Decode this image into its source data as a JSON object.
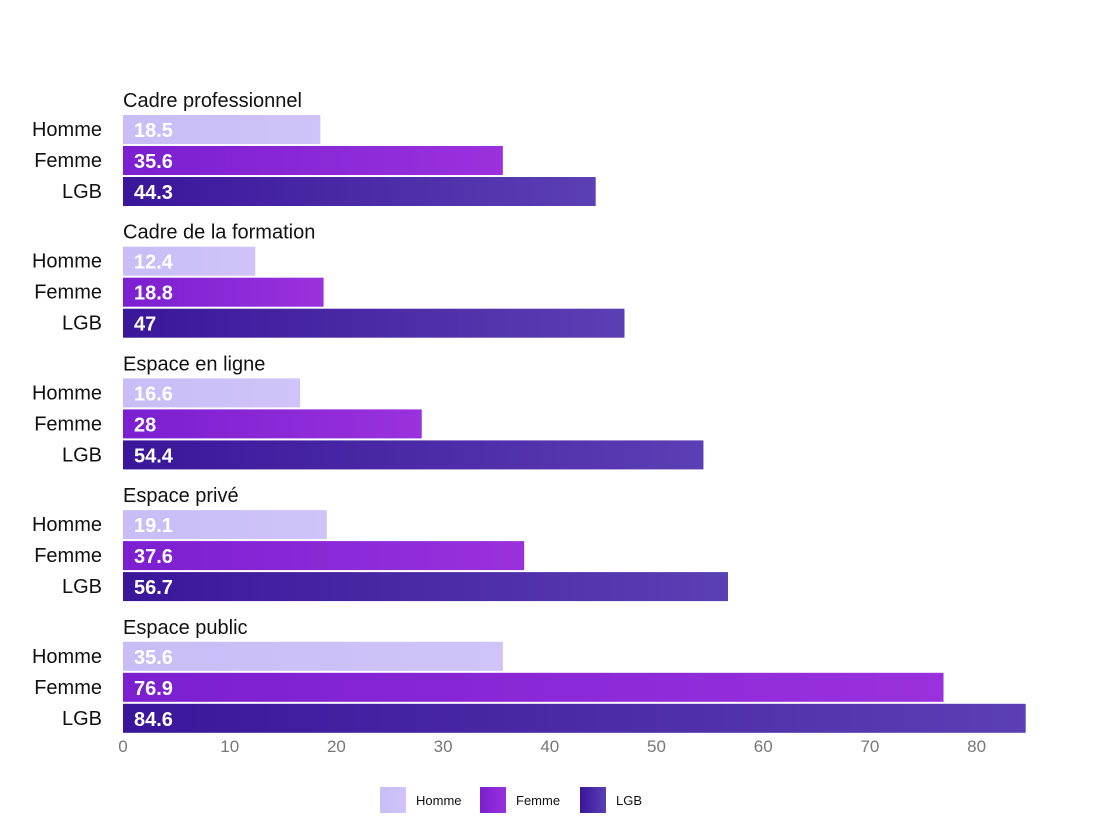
{
  "chart_data": {
    "type": "bar",
    "orientation": "horizontal",
    "title": "",
    "xlabel": "",
    "ylabel": "",
    "xlim": [
      0,
      85
    ],
    "xticks": [
      0,
      10,
      20,
      30,
      40,
      50,
      60,
      70,
      80
    ],
    "grid": false,
    "legend_position": "bottom-center",
    "categories": [
      "Cadre professionnel",
      "Cadre de la formation",
      "Espace en ligne",
      "Espace privé",
      "Espace public"
    ],
    "series": [
      {
        "name": "Homme",
        "values": [
          18.5,
          12.4,
          16.6,
          19.1,
          35.6
        ],
        "color_start": "#c9bdf7",
        "color_end": "#cfc3f9"
      },
      {
        "name": "Femme",
        "values": [
          35.6,
          18.8,
          28,
          37.6,
          76.9
        ],
        "color_start": "#7b1fd0",
        "color_end": "#9a31dd"
      },
      {
        "name": "LGB",
        "values": [
          44.3,
          47,
          54.4,
          56.7,
          84.6
        ],
        "color_start": "#3a169a",
        "color_end": "#5b3fb4"
      }
    ],
    "value_labels": [
      [
        "18.5",
        "35.6",
        "44.3"
      ],
      [
        "12.4",
        "18.8",
        "47"
      ],
      [
        "16.6",
        "28",
        "54.4"
      ],
      [
        "19.1",
        "37.6",
        "56.7"
      ],
      [
        "35.6",
        "76.9",
        "84.6"
      ]
    ],
    "tick_labels": [
      "0",
      "10",
      "20",
      "30",
      "40",
      "50",
      "60",
      "70",
      "80"
    ]
  }
}
